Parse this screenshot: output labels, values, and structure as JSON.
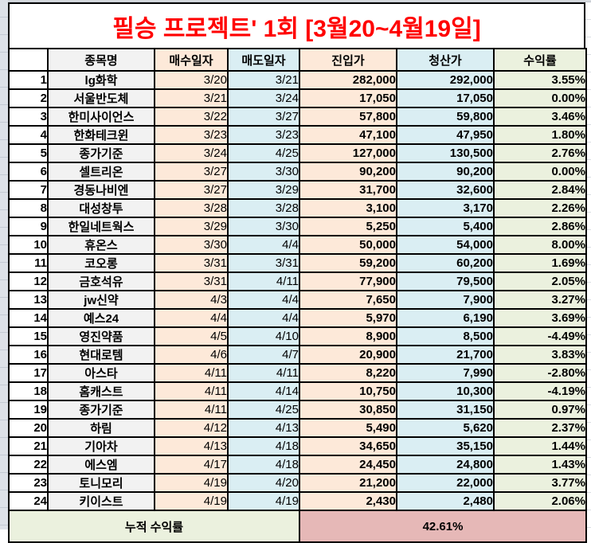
{
  "title": "필승 프로젝트' 1회 [3월20~4월19일]",
  "table": {
    "headers": [
      "종목명",
      "매수일자",
      "매도일자",
      "진입가",
      "청산가",
      "수익률"
    ],
    "rows": [
      {
        "no": "1",
        "name": "lg화학",
        "green": false,
        "buy": "3/20",
        "sell": "3/21",
        "entry": "282,000",
        "exit": "292,000",
        "ret": "3.55%"
      },
      {
        "no": "2",
        "name": "서울반도체",
        "green": false,
        "buy": "3/21",
        "sell": "3/24",
        "entry": "17,050",
        "exit": "17,050",
        "ret": "0.00%"
      },
      {
        "no": "3",
        "name": "한미사이언스",
        "green": false,
        "buy": "3/22",
        "sell": "3/27",
        "entry": "57,800",
        "exit": "59,800",
        "ret": "3.46%"
      },
      {
        "no": "4",
        "name": "한화테크윈",
        "green": false,
        "buy": "3/23",
        "sell": "3/23",
        "entry": "47,100",
        "exit": "47,950",
        "ret": "1.80%"
      },
      {
        "no": "5",
        "name": "종가기준",
        "green": true,
        "buy": "3/24",
        "sell": "4/25",
        "entry": "127,000",
        "exit": "130,500",
        "ret": "2.76%"
      },
      {
        "no": "6",
        "name": "셀트리온",
        "green": false,
        "buy": "3/27",
        "sell": "3/30",
        "entry": "90,200",
        "exit": "90,200",
        "ret": "0.00%"
      },
      {
        "no": "7",
        "name": "경동나비엔",
        "green": false,
        "buy": "3/27",
        "sell": "3/29",
        "entry": "31,700",
        "exit": "32,600",
        "ret": "2.84%"
      },
      {
        "no": "8",
        "name": "대성창투",
        "green": false,
        "buy": "3/28",
        "sell": "3/28",
        "entry": "3,100",
        "exit": "3,170",
        "ret": "2.26%"
      },
      {
        "no": "9",
        "name": "한일네트웍스",
        "green": false,
        "buy": "3/29",
        "sell": "3/30",
        "entry": "5,250",
        "exit": "5,400",
        "ret": "2.86%"
      },
      {
        "no": "10",
        "name": "휴온스",
        "green": false,
        "buy": "3/30",
        "sell": "4/4",
        "entry": "50,000",
        "exit": "54,000",
        "ret": "8.00%"
      },
      {
        "no": "11",
        "name": "코오롱",
        "green": false,
        "buy": "3/31",
        "sell": "3/31",
        "entry": "59,200",
        "exit": "60,200",
        "ret": "1.69%"
      },
      {
        "no": "12",
        "name": "금호석유",
        "green": false,
        "buy": "3/31",
        "sell": "4/11",
        "entry": "77,900",
        "exit": "79,500",
        "ret": "2.05%"
      },
      {
        "no": "13",
        "name": "jw신약",
        "green": false,
        "buy": "4/3",
        "sell": "4/4",
        "entry": "7,650",
        "exit": "7,900",
        "ret": "3.27%"
      },
      {
        "no": "14",
        "name": "예스24",
        "green": false,
        "buy": "4/4",
        "sell": "4/4",
        "entry": "5,970",
        "exit": "6,190",
        "ret": "3.69%"
      },
      {
        "no": "15",
        "name": "영진약품",
        "green": false,
        "buy": "4/5",
        "sell": "4/10",
        "entry": "8,900",
        "exit": "8,500",
        "ret": "-4.49%"
      },
      {
        "no": "16",
        "name": "현대로템",
        "green": false,
        "buy": "4/6",
        "sell": "4/7",
        "entry": "20,900",
        "exit": "21,700",
        "ret": "3.83%"
      },
      {
        "no": "17",
        "name": "아스타",
        "green": false,
        "buy": "4/11",
        "sell": "4/11",
        "entry": "8,220",
        "exit": "7,990",
        "ret": "-2.80%"
      },
      {
        "no": "18",
        "name": "홈캐스트",
        "green": false,
        "buy": "4/11",
        "sell": "4/14",
        "entry": "10,750",
        "exit": "10,300",
        "ret": "-4.19%"
      },
      {
        "no": "19",
        "name": "종가기준",
        "green": true,
        "buy": "4/11",
        "sell": "4/25",
        "entry": "30,850",
        "exit": "31,150",
        "ret": "0.97%"
      },
      {
        "no": "20",
        "name": "하림",
        "green": false,
        "buy": "4/12",
        "sell": "4/13",
        "entry": "5,490",
        "exit": "5,620",
        "ret": "2.37%"
      },
      {
        "no": "21",
        "name": "기아차",
        "green": false,
        "buy": "4/13",
        "sell": "4/18",
        "entry": "34,650",
        "exit": "35,150",
        "ret": "1.44%"
      },
      {
        "no": "22",
        "name": "에스엠",
        "green": false,
        "buy": "4/17",
        "sell": "4/18",
        "entry": "24,450",
        "exit": "24,800",
        "ret": "1.43%"
      },
      {
        "no": "23",
        "name": "토니모리",
        "green": false,
        "buy": "4/19",
        "sell": "4/20",
        "entry": "21,200",
        "exit": "22,000",
        "ret": "3.77%"
      },
      {
        "no": "24",
        "name": "키이스트",
        "green": false,
        "buy": "4/19",
        "sell": "4/19",
        "entry": "2,430",
        "exit": "2,480",
        "ret": "2.06%"
      }
    ]
  },
  "footer": {
    "label": "누적 수익률",
    "total": "42.61%"
  },
  "colors": {
    "title_red": "#FF0000",
    "positive_return": "#FF0000",
    "negative_return": "#0070C0",
    "highlight_green": "#00B050",
    "cell_peach": "#FDE9D9",
    "cell_blue": "#DAEEF3",
    "cell_gray": "#F2F2F2",
    "cell_olive": "#EBF1DE",
    "cell_salmon": "#E6B8B7"
  }
}
